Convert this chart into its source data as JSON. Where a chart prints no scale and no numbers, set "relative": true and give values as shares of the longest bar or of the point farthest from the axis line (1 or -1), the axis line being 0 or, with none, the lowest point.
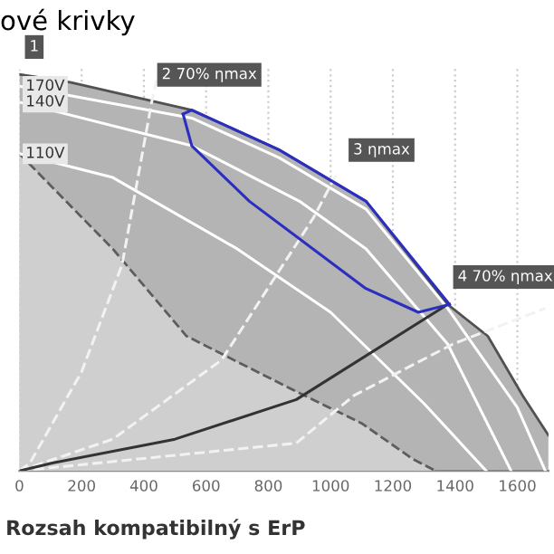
{
  "chart_data": {
    "type": "line",
    "title": "ové krivky",
    "relative": true,
    "grid": true,
    "legend": false,
    "marker": "none",
    "xlim": [
      0,
      1700
    ],
    "xticks": [
      0,
      200,
      400,
      600,
      800,
      1000,
      1200,
      1400,
      1600
    ],
    "series": [
      {
        "type": "area",
        "color": "#b4b4b4",
        "line_style": "solid",
        "x": [
          0,
          163,
          554,
          834,
          1114,
          1376,
          1505,
          1617,
          1700
        ],
        "values": [
          1.0,
          0.98,
          0.91,
          0.81,
          0.68,
          0.42,
          0.34,
          0.19,
          0.09
        ]
      },
      {
        "type": "area",
        "color": "#cfcfcf",
        "line_style": "dashed",
        "x": [
          0,
          300,
          537,
          890,
          1100,
          1264,
          1337
        ],
        "values": [
          0.8,
          0.56,
          0.34,
          0.2,
          0.12,
          0.03,
          0.0
        ]
      },
      {
        "name": "170V",
        "color": "#ffffff",
        "line_style": "solid",
        "x": [
          0,
          554,
          834,
          1114,
          1376,
          1600,
          1690
        ],
        "values": [
          0.97,
          0.89,
          0.79,
          0.66,
          0.41,
          0.16,
          0.0
        ]
      },
      {
        "name": "140V",
        "color": "#ffffff",
        "line_style": "solid",
        "x": [
          0,
          554,
          900,
          1114,
          1376,
          1580
        ],
        "values": [
          0.93,
          0.82,
          0.68,
          0.56,
          0.32,
          0.0
        ]
      },
      {
        "name": "110V",
        "color": "#ffffff",
        "line_style": "solid",
        "x": [
          0,
          300,
          700,
          1000,
          1300,
          1500
        ],
        "values": [
          0.8,
          0.74,
          0.56,
          0.4,
          0.17,
          0.0
        ]
      },
      {
        "color": "#f2f2f2",
        "line_style": "dashed",
        "x": [
          0,
          34,
          200,
          330,
          425,
          445
        ],
        "values": [
          0.0,
          0.02,
          0.25,
          0.52,
          0.93,
          1.0
        ]
      },
      {
        "color": "#f2f2f2",
        "line_style": "dashed",
        "x": [
          0,
          300,
          650,
          946,
          1020
        ],
        "values": [
          0.0,
          0.08,
          0.28,
          0.64,
          0.75
        ]
      },
      {
        "color": "#f2f2f2",
        "line_style": "dashed",
        "x": [
          0,
          890,
          1075,
          1393,
          1690
        ],
        "values": [
          0.0,
          0.07,
          0.19,
          0.32,
          0.41
        ]
      },
      {
        "color": "#333333",
        "line_style": "solid",
        "x": [
          0,
          106,
          500,
          890,
          1376
        ],
        "values": [
          0.0,
          0.02,
          0.08,
          0.18,
          0.42
        ]
      },
      {
        "color": "#2b2fc0",
        "line_style": "solid",
        "x": [
          526,
          554,
          834,
          1114,
          1382
        ],
        "values": [
          0.9,
          0.91,
          0.81,
          0.68,
          0.42
        ]
      },
      {
        "color": "#2b2fc0",
        "line_style": "solid",
        "x": [
          526,
          554,
          739,
          1113,
          1282,
          1382
        ],
        "values": [
          0.9,
          0.82,
          0.68,
          0.46,
          0.4,
          0.42
        ]
      }
    ],
    "annotations": [
      {
        "text": "1",
        "x": 0,
        "y": 1.0
      },
      {
        "text": "2 70% ηmax",
        "x": 425,
        "y": 0.93
      },
      {
        "text": "3 ηmax",
        "x": 1040,
        "y": 0.74
      },
      {
        "text": "4 70% ηmax",
        "x": 1376,
        "y": 0.42
      },
      "Rozsah kompatibilný s ErP"
    ]
  }
}
